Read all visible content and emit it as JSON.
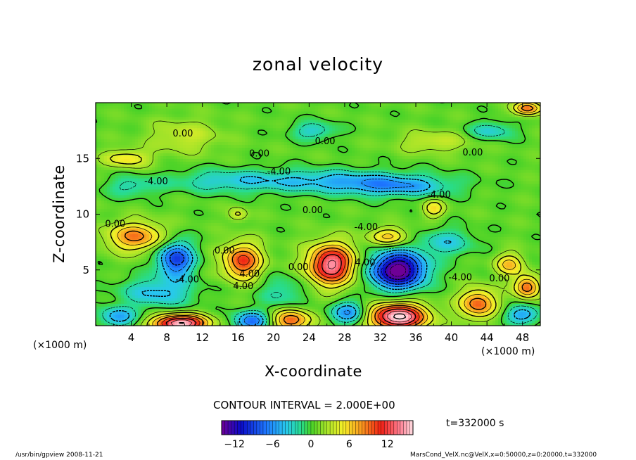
{
  "chart_data": {
    "type": "heatmap",
    "title": "zonal velocity",
    "xlabel": "X-coordinate",
    "ylabel": "Z-coordinate",
    "x_unit": "(×1000 m)",
    "y_unit": "(×1000 m)",
    "xlim": [
      0,
      50
    ],
    "ylim": [
      0,
      20
    ],
    "x_ticks": [
      4,
      8,
      12,
      16,
      20,
      24,
      28,
      32,
      36,
      40,
      44,
      48
    ],
    "y_ticks": [
      5,
      10,
      15
    ],
    "contour_interval_text": "CONTOUR INTERVAL = 2.000E+00",
    "contour_labels": [
      {
        "text": "0.00",
        "x": 9.8,
        "z": 17.2
      },
      {
        "text": "0.00",
        "x": 25.8,
        "z": 16.5
      },
      {
        "text": "0.00",
        "x": 18.4,
        "z": 15.4
      },
      {
        "text": "0.00",
        "x": 42.4,
        "z": 15.5
      },
      {
        "text": "-4.00",
        "x": 20.6,
        "z": 13.8
      },
      {
        "text": "-4.00",
        "x": 6.8,
        "z": 12.9
      },
      {
        "text": "-4.00",
        "x": 38.6,
        "z": 11.7
      },
      {
        "text": "0.00",
        "x": 24.4,
        "z": 10.3
      },
      {
        "text": "0.00",
        "x": 2.2,
        "z": 9.1
      },
      {
        "text": "-4.00",
        "x": 30.4,
        "z": 8.8
      },
      {
        "text": "0.00",
        "x": 14.5,
        "z": 6.7
      },
      {
        "text": "4.00",
        "x": 17.3,
        "z": 4.6
      },
      {
        "text": "-4.00",
        "x": 10.3,
        "z": 4.1
      },
      {
        "text": "0.00",
        "x": 22.8,
        "z": 5.2
      },
      {
        "text": "4.00",
        "x": 30.3,
        "z": 5.6
      },
      {
        "text": "-4.00",
        "x": 41.0,
        "z": 4.3
      },
      {
        "text": "0.00",
        "x": 45.4,
        "z": 4.2
      },
      {
        "text": "4.00",
        "x": 16.6,
        "z": 3.5
      }
    ],
    "blobs": [
      {
        "x": 4.5,
        "z": 8.0,
        "value": 8,
        "sx": 3.2,
        "sz": 1.3
      },
      {
        "x": 9.0,
        "z": 6.0,
        "value": -10,
        "sx": 2.0,
        "sz": 1.6
      },
      {
        "x": 7.0,
        "z": 3.0,
        "value": -5,
        "sx": 4.0,
        "sz": 1.3
      },
      {
        "x": 9.5,
        "z": 0.2,
        "value": 16,
        "sx": 3.0,
        "sz": 0.8
      },
      {
        "x": 16.5,
        "z": 5.8,
        "value": 10,
        "sx": 2.2,
        "sz": 1.6
      },
      {
        "x": 22.0,
        "z": 0.5,
        "value": 9,
        "sx": 2.2,
        "sz": 1.0
      },
      {
        "x": 17.5,
        "z": 0.4,
        "value": -8,
        "sx": 2.0,
        "sz": 0.9
      },
      {
        "x": 26.5,
        "z": 5.5,
        "value": 14,
        "sx": 2.6,
        "sz": 1.8
      },
      {
        "x": 21.0,
        "z": 3.0,
        "value": -3,
        "sx": 2.5,
        "sz": 1.5
      },
      {
        "x": 34.0,
        "z": 5.0,
        "value": -16,
        "sx": 3.0,
        "sz": 1.6
      },
      {
        "x": 34.0,
        "z": 0.8,
        "value": 16,
        "sx": 3.2,
        "sz": 1.2
      },
      {
        "x": 33.0,
        "z": 8.0,
        "value": 6,
        "sx": 2.2,
        "sz": 0.8
      },
      {
        "x": 28.5,
        "z": 1.2,
        "value": -7,
        "sx": 2.0,
        "sz": 1.0
      },
      {
        "x": 39.5,
        "z": 7.5,
        "value": -4,
        "sx": 3.0,
        "sz": 1.2
      },
      {
        "x": 43.0,
        "z": 2.0,
        "value": 9,
        "sx": 2.0,
        "sz": 1.3
      },
      {
        "x": 48.5,
        "z": 3.5,
        "value": 9,
        "sx": 1.4,
        "sz": 1.0
      },
      {
        "x": 46.5,
        "z": 5.5,
        "value": 6,
        "sx": 1.6,
        "sz": 1.0
      },
      {
        "x": 2.5,
        "z": 0.8,
        "value": -6,
        "sx": 2.0,
        "sz": 0.9
      },
      {
        "x": 48.0,
        "z": 1.0,
        "value": -6,
        "sx": 2.0,
        "sz": 0.8
      },
      {
        "x": 26.0,
        "z": 13.0,
        "value": -5,
        "sx": 10.0,
        "sz": 1.0
      },
      {
        "x": 34.0,
        "z": 12.5,
        "value": -5,
        "sx": 6.0,
        "sz": 0.9
      },
      {
        "x": 14.0,
        "z": 13.0,
        "value": -3,
        "sx": 6.0,
        "sz": 1.0
      },
      {
        "x": 4.0,
        "z": 12.5,
        "value": -3,
        "sx": 3.0,
        "sz": 0.9
      },
      {
        "x": 24.5,
        "z": 17.5,
        "value": -4,
        "sx": 2.5,
        "sz": 0.8
      },
      {
        "x": 44.5,
        "z": 17.5,
        "value": -4,
        "sx": 2.5,
        "sz": 0.8
      },
      {
        "x": 48.5,
        "z": 19.5,
        "value": 9,
        "sx": 1.5,
        "sz": 0.6
      },
      {
        "x": 3.5,
        "z": 15.0,
        "value": 5,
        "sx": 2.5,
        "sz": 0.8
      },
      {
        "x": 10.0,
        "z": 17.0,
        "value": 3,
        "sx": 4.0,
        "sz": 1.5
      },
      {
        "x": 38.0,
        "z": 16.5,
        "value": 3,
        "sx": 4.0,
        "sz": 1.0
      },
      {
        "x": 16.0,
        "z": 10.0,
        "value": 4,
        "sx": 1.0,
        "sz": 0.6
      },
      {
        "x": 38.0,
        "z": 10.5,
        "value": 5,
        "sx": 1.2,
        "sz": 0.8
      }
    ],
    "colorbar": {
      "min": -14,
      "max": 16,
      "ticks": [
        "−12",
        "−6",
        "0",
        "6",
        "12"
      ],
      "tick_values": [
        -12,
        -6,
        0,
        6,
        12
      ]
    },
    "time_label": "t=332000 s"
  },
  "footer": {
    "left": "/usr/bin/gpview  2008-11-21",
    "right": "MarsCond_VelX.nc@VelX,x=0:50000,z=0:20000,t=332000"
  }
}
